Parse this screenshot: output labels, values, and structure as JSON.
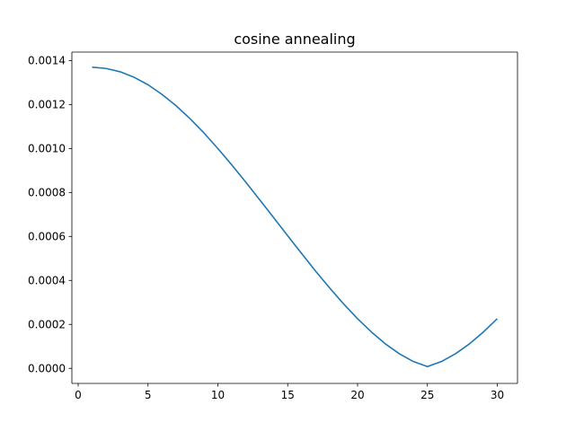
{
  "chart_data": {
    "type": "line",
    "title": "cosine annealing",
    "xlabel": "",
    "ylabel": "",
    "xlim": [
      -0.45,
      31.45
    ],
    "ylim": [
      -6.85e-05,
      0.0014385
    ],
    "grid": false,
    "x_ticks": [
      0,
      5,
      10,
      15,
      20,
      25,
      30
    ],
    "x_tick_labels": [
      "0",
      "5",
      "10",
      "15",
      "20",
      "25",
      "30"
    ],
    "y_ticks": [
      0.0,
      0.0002,
      0.0004,
      0.0006,
      0.0008,
      0.001,
      0.0012,
      0.0014
    ],
    "y_tick_labels": [
      "0.0000",
      "0.0002",
      "0.0004",
      "0.0006",
      "0.0008",
      "0.0010",
      "0.0012",
      "0.0014"
    ],
    "series": [
      {
        "color": "#1f77b4",
        "x": [
          1,
          2,
          3,
          4,
          5,
          6,
          7,
          8,
          9,
          10,
          11,
          12,
          13,
          14,
          15,
          16,
          17,
          18,
          19,
          20,
          21,
          22,
          23,
          24,
          25,
          26,
          27,
          28,
          29,
          30
        ],
        "y": [
          0.00137,
          0.001364,
          0.001349,
          0.001324,
          0.00129,
          0.001246,
          0.001195,
          0.001136,
          0.001071,
          0.001,
          0.000925,
          0.000847,
          0.000766,
          0.000685,
          0.000603,
          0.000522,
          0.000442,
          0.000366,
          0.000293,
          0.000226,
          0.000165,
          0.000111,
          6.6e-05,
          3.1e-05,
          8e-06,
          3.1e-05,
          6.6e-05,
          0.000111,
          0.000165,
          0.000226
        ]
      }
    ]
  }
}
